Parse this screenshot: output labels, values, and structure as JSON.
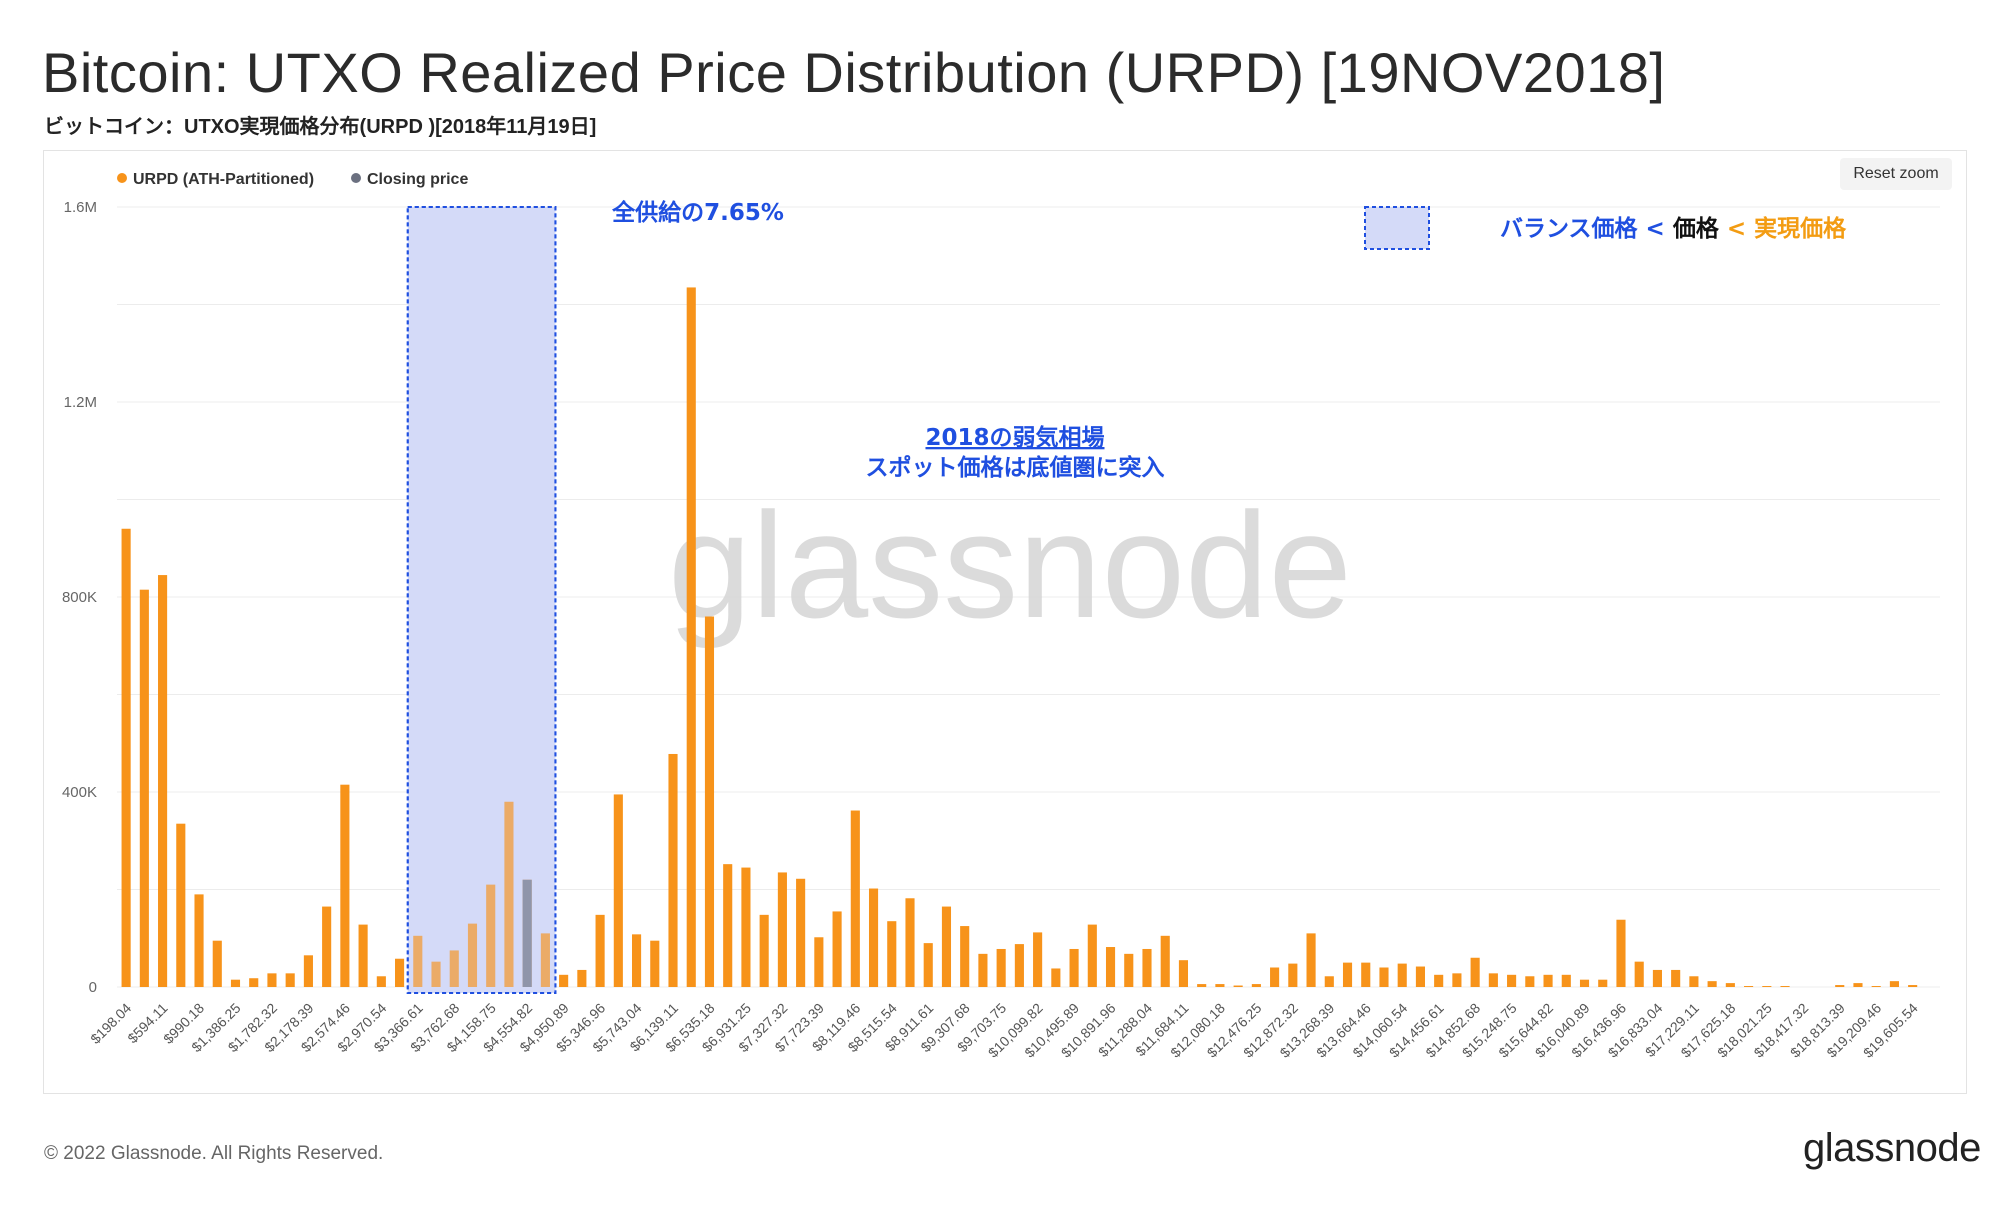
{
  "header": {
    "title": "Bitcoin: UTXO Realized Price Distribution (URPD) [19NOV2018]",
    "subtitle": "ビットコイン：UTXO実現価格分布(URPD )[2018年11月19日]"
  },
  "toolbar": {
    "reset_zoom_label": "Reset zoom"
  },
  "footer": {
    "copyright": "© 2022 Glassnode. All Rights Reserved.",
    "brand": "glassnode"
  },
  "watermark": "glassnode",
  "annotations": {
    "supply_share": "全供給の7.65%",
    "bear_market_line1": "2018の弱気相場",
    "bear_market_line2": "スポット価格は底値圏に突入",
    "legend_part1": "バランス価格 <",
    "legend_part2": " 価格 ",
    "legend_part3": "< 実現価格"
  },
  "colors": {
    "urpd": "#F7931A",
    "closing": "#6B7080",
    "highlight_fill": "#D4DAF8",
    "highlight_border": "#1F4FE0",
    "annotation_blue": "#1F4FE0",
    "annotation_orange": "#F39C12",
    "grid": "#ECECEC"
  },
  "chart_data": {
    "type": "bar",
    "xlabel": "",
    "ylabel": "",
    "ylim": [
      0,
      1600000
    ],
    "yticks": [
      {
        "value": 0,
        "label": "0"
      },
      {
        "value": 400000,
        "label": "400K"
      },
      {
        "value": 800000,
        "label": "800K"
      },
      {
        "value": 1200000,
        "label": "1.2M"
      },
      {
        "value": 1600000,
        "label": "1.6M"
      }
    ],
    "grid": true,
    "legend_position": "top-left",
    "bin_start": 198.04,
    "bin_width": 198.04,
    "tick_every": 2,
    "tick_labels": [
      "$198.04",
      "$594.11",
      "$990.18",
      "$1,386.25",
      "$1,782.32",
      "$2,178.39",
      "$2,574.46",
      "$2,970.54",
      "$3,366.61",
      "$3,762.68",
      "$4,158.75",
      "$4,554.82",
      "$4,950.89",
      "$5,346.96",
      "$5,743.04",
      "$6,139.11",
      "$6,535.18",
      "$6,931.25",
      "$7,327.32",
      "$7,723.39",
      "$8,119.46",
      "$8,515.54",
      "$8,911.61",
      "$9,307.68",
      "$9,703.75",
      "$10,099.82",
      "$10,495.89",
      "$10,891.96",
      "$11,288.04",
      "$11,684.11",
      "$12,080.18",
      "$12,476.25",
      "$12,872.32",
      "$13,268.39",
      "$13,664.46",
      "$14,060.54",
      "$14,456.61",
      "$14,852.68",
      "$15,248.75",
      "$15,644.82",
      "$16,040.89",
      "$16,436.96",
      "$16,833.04",
      "$17,229.11",
      "$17,625.18",
      "$18,021.25",
      "$18,417.32",
      "$18,813.39",
      "$19,209.46",
      "$19,605.54"
    ],
    "series": [
      {
        "name": "URPD (ATH-Partitioned)",
        "color": "#F7931A",
        "values": [
          940000,
          815000,
          845000,
          335000,
          190000,
          95000,
          15000,
          18000,
          28000,
          28000,
          65000,
          165000,
          415000,
          128000,
          22000,
          58000,
          105000,
          52000,
          75000,
          130000,
          210000,
          380000,
          220000,
          110000,
          25000,
          35000,
          148000,
          395000,
          108000,
          95000,
          478000,
          1435000,
          760000,
          252000,
          245000,
          148000,
          235000,
          222000,
          102000,
          155000,
          362000,
          202000,
          135000,
          182000,
          90000,
          165000,
          125000,
          68000,
          78000,
          88000,
          112000,
          38000,
          78000,
          128000,
          82000,
          68000,
          78000,
          105000,
          55000,
          6000,
          6000,
          3000,
          6000,
          40000,
          48000,
          110000,
          22000,
          50000,
          50000,
          40000,
          48000,
          42000,
          25000,
          28000,
          60000,
          28000,
          25000,
          22000,
          25000,
          25000,
          15000,
          15000,
          138000,
          52000,
          35000,
          35000,
          22000,
          12000,
          8000,
          2000,
          2000,
          2000,
          0,
          0,
          4000,
          8000,
          2000,
          12000,
          4000,
          0
        ]
      },
      {
        "name": "Closing price",
        "color": "#6B7080",
        "bin_index": 22,
        "value": 220000
      }
    ],
    "highlight": {
      "x_range_bins": [
        16,
        23
      ],
      "label": "全供給の7.65%"
    }
  }
}
